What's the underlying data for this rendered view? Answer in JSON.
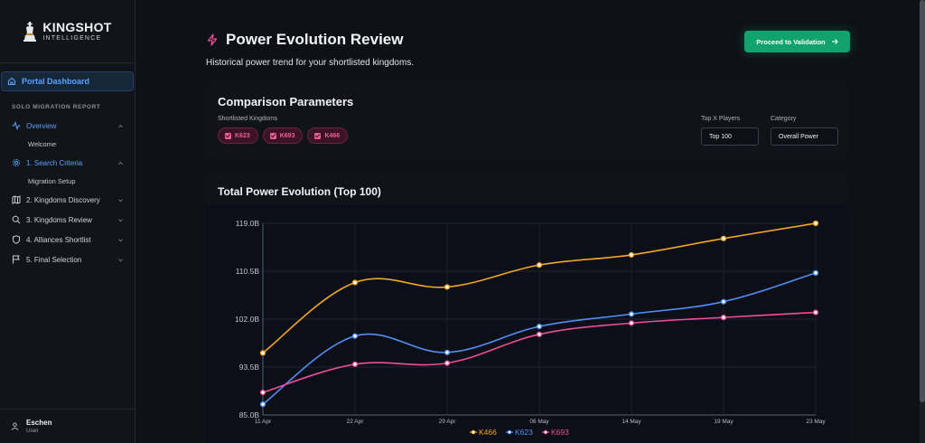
{
  "brand": {
    "title": "KINGSHOT",
    "subtitle": "INTELLIGENCE"
  },
  "sidebar": {
    "dashboard": "Portal Dashboard",
    "section": "SOLO MIGRATION REPORT",
    "items": [
      {
        "label": "Overview",
        "icon": "activity-icon",
        "sub": "Welcome"
      },
      {
        "label": "1. Search Criteria",
        "icon": "gear-icon",
        "sub": "Migration Setup"
      },
      {
        "label": "2. Kingdoms Discovery",
        "icon": "map-icon"
      },
      {
        "label": "3. Kingdoms Review",
        "icon": "search-icon"
      },
      {
        "label": "4. Alliances Shortlist",
        "icon": "shield-icon"
      },
      {
        "label": "5. Final Selection",
        "icon": "flag-icon"
      }
    ],
    "user": {
      "name": "Eschen",
      "role": "User"
    }
  },
  "header": {
    "title": "Power Evolution Review",
    "subtitle": "Historical power trend for your shortlisted kingdoms.",
    "cta": "Proceed to Validation"
  },
  "params": {
    "title": "Comparison Parameters",
    "kingdoms_label": "Shortlisted Kingdoms",
    "kingdoms": [
      "K623",
      "K693",
      "K466"
    ],
    "top_label": "Top X Players",
    "top_value": "Top 100",
    "category_label": "Category",
    "category_value": "Overall Power"
  },
  "colors": {
    "K466": "#f5a524",
    "K623": "#4f8ff7",
    "K693": "#ec4f97"
  },
  "chart_data": {
    "type": "line",
    "title": "Total Power Evolution (Top 100)",
    "x": [
      "11 Apr",
      "22 Apr",
      "29 Apr",
      "06 May",
      "14 May",
      "19 May",
      "23 May"
    ],
    "y_ticks": [
      "85.0B",
      "93.5B",
      "102.0B",
      "110.5B",
      "119.0B"
    ],
    "ylim": [
      85.0,
      119.0
    ],
    "grid": true,
    "legend": "bottom",
    "series": [
      {
        "name": "K466",
        "values": [
          96.0,
          108.5,
          107.7,
          111.6,
          113.4,
          116.3,
          119.0
        ]
      },
      {
        "name": "K623",
        "values": [
          86.9,
          99.0,
          96.1,
          100.7,
          102.9,
          105.1,
          110.2
        ]
      },
      {
        "name": "K693",
        "values": [
          89.0,
          94.0,
          94.2,
          99.3,
          101.3,
          102.3,
          103.2
        ]
      }
    ]
  }
}
